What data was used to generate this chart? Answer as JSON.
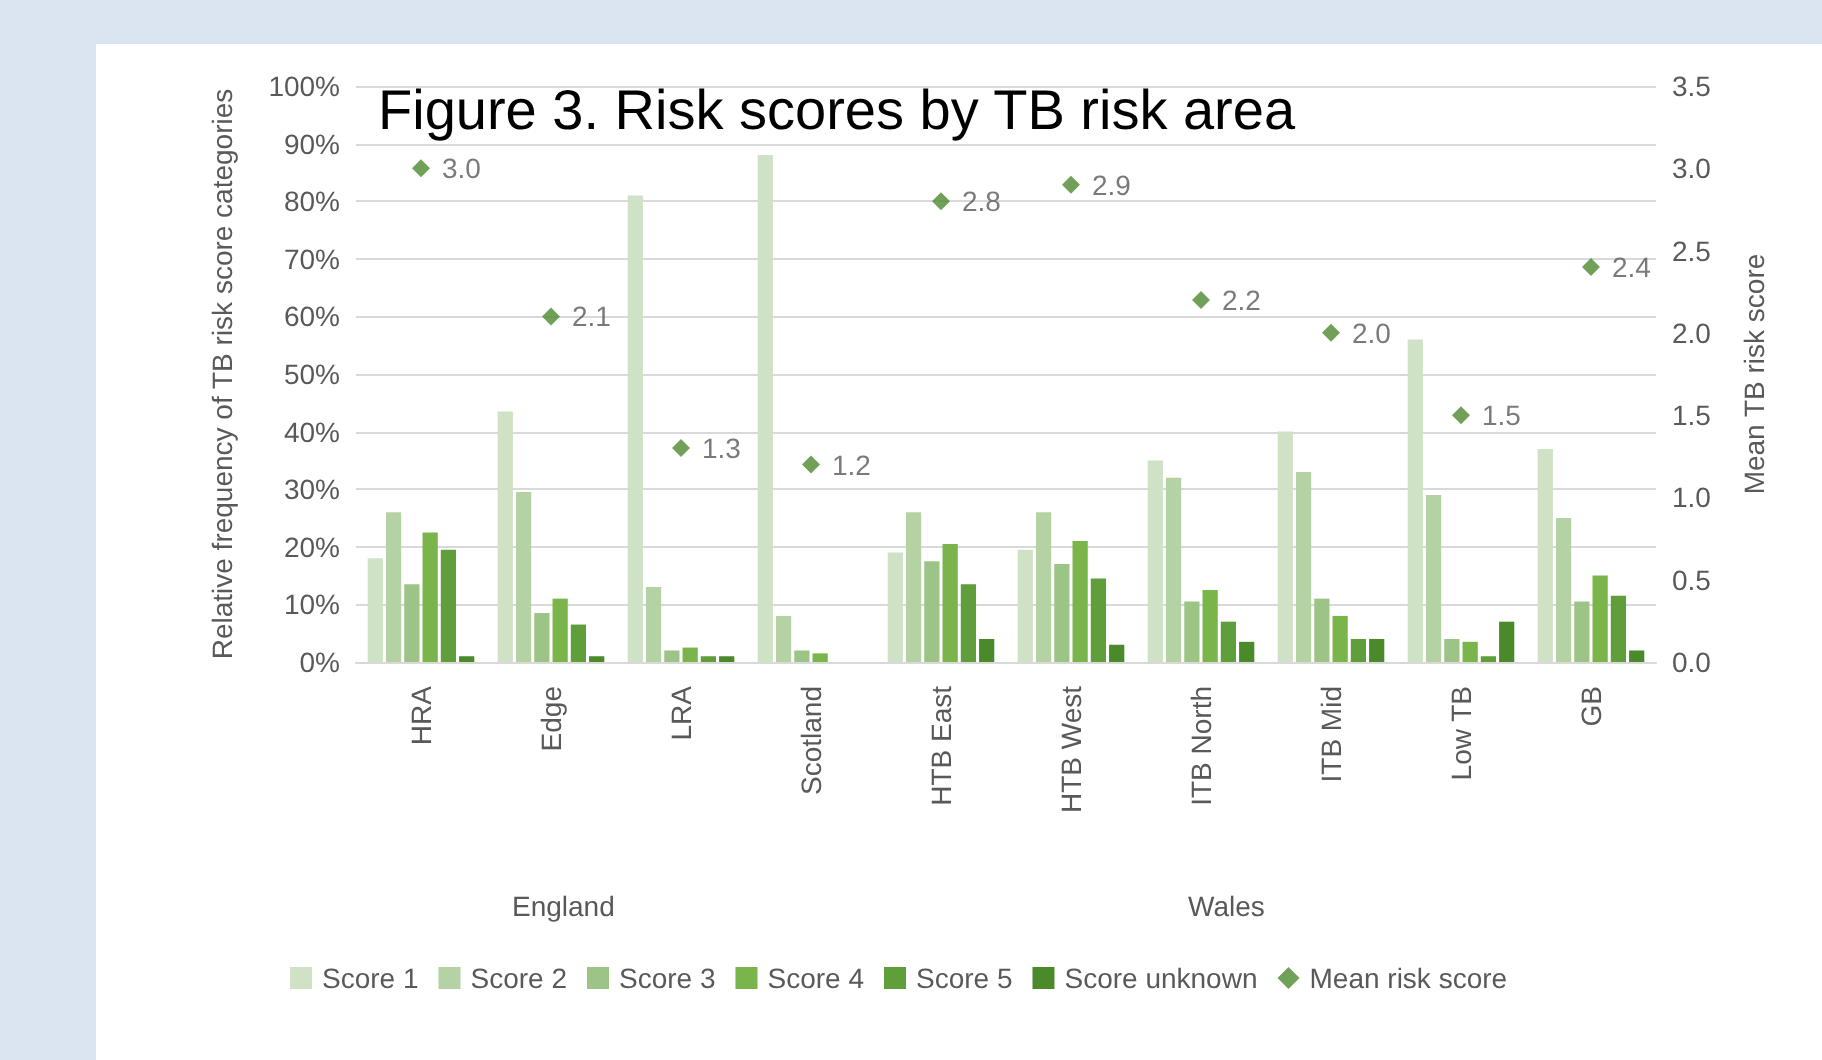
{
  "chart_data": {
    "type": "bar",
    "title": "Figure 3. Risk scores by TB risk area",
    "ylabel": "Relative frequency of TB risk score categories",
    "y2label": "Mean TB risk score",
    "categories": [
      "HRA",
      "Edge",
      "LRA",
      "Scotland",
      "HTB East",
      "HTB West",
      "ITB North",
      "ITB Mid",
      "Low TB",
      "GB"
    ],
    "annotations": [
      "England",
      "Wales"
    ],
    "series": [
      {
        "name": "Score 1",
        "color": "#cfe2c6",
        "values": [
          18,
          43.5,
          81,
          88,
          19,
          19.5,
          35,
          40,
          56,
          37
        ]
      },
      {
        "name": "Score 2",
        "color": "#b4d2a4",
        "values": [
          26,
          29.5,
          13,
          8,
          26,
          26,
          32,
          33,
          29,
          25
        ]
      },
      {
        "name": "Score 3",
        "color": "#9cc487",
        "values": [
          13.5,
          8.5,
          2,
          2,
          17.5,
          17,
          10.5,
          11,
          4,
          10.5
        ]
      },
      {
        "name": "Score 4",
        "color": "#79b54a",
        "values": [
          22.5,
          11,
          2.5,
          1.5,
          20.5,
          21,
          12.5,
          8,
          3.5,
          15
        ]
      },
      {
        "name": "Score 5",
        "color": "#5f9e3a",
        "values": [
          19.5,
          6.5,
          1,
          0,
          13.5,
          14.5,
          7,
          4,
          1,
          11.5
        ]
      },
      {
        "name": "Score unknown",
        "color": "#4b8a2b",
        "values": [
          1,
          1,
          1,
          0,
          4,
          3,
          3.5,
          4,
          7,
          2
        ]
      },
      {
        "name": "Mean risk score",
        "type": "scatter",
        "axis": "y2",
        "marker": "diamond",
        "color": "#4e8a30",
        "values": [
          3.0,
          2.1,
          1.3,
          1.2,
          2.8,
          2.9,
          2.2,
          2.0,
          1.5,
          2.4
        ],
        "value_labels": [
          "3.0",
          "2.1",
          "1.3",
          "1.2",
          "2.8",
          "2.9",
          "2.2",
          "2.0",
          "1.5",
          "2.4"
        ]
      }
    ],
    "ylim": [
      0,
      100
    ],
    "yticks": [
      {
        "value": 0,
        "label": "0%"
      },
      {
        "value": 10,
        "label": "10%"
      },
      {
        "value": 20,
        "label": "20%"
      },
      {
        "value": 30,
        "label": "30%"
      },
      {
        "value": 40,
        "label": "40%"
      },
      {
        "value": 50,
        "label": "50%"
      },
      {
        "value": 60,
        "label": "60%"
      },
      {
        "value": 70,
        "label": "70%"
      },
      {
        "value": 80,
        "label": "80%"
      },
      {
        "value": 90,
        "label": "90%"
      },
      {
        "value": 100,
        "label": "100%"
      }
    ],
    "y2lim": [
      0,
      3.5
    ],
    "y2ticks": [
      {
        "value": 0,
        "label": "0.0"
      },
      {
        "value": 0.5,
        "label": "0.5"
      },
      {
        "value": 1,
        "label": "1.0"
      },
      {
        "value": 1.5,
        "label": "1.5"
      },
      {
        "value": 2,
        "label": "2.0"
      },
      {
        "value": 2.5,
        "label": "2.5"
      },
      {
        "value": 3,
        "label": "3.0"
      },
      {
        "value": 3.5,
        "label": "3.5"
      }
    ],
    "grid": "y",
    "legend": "bottom"
  }
}
